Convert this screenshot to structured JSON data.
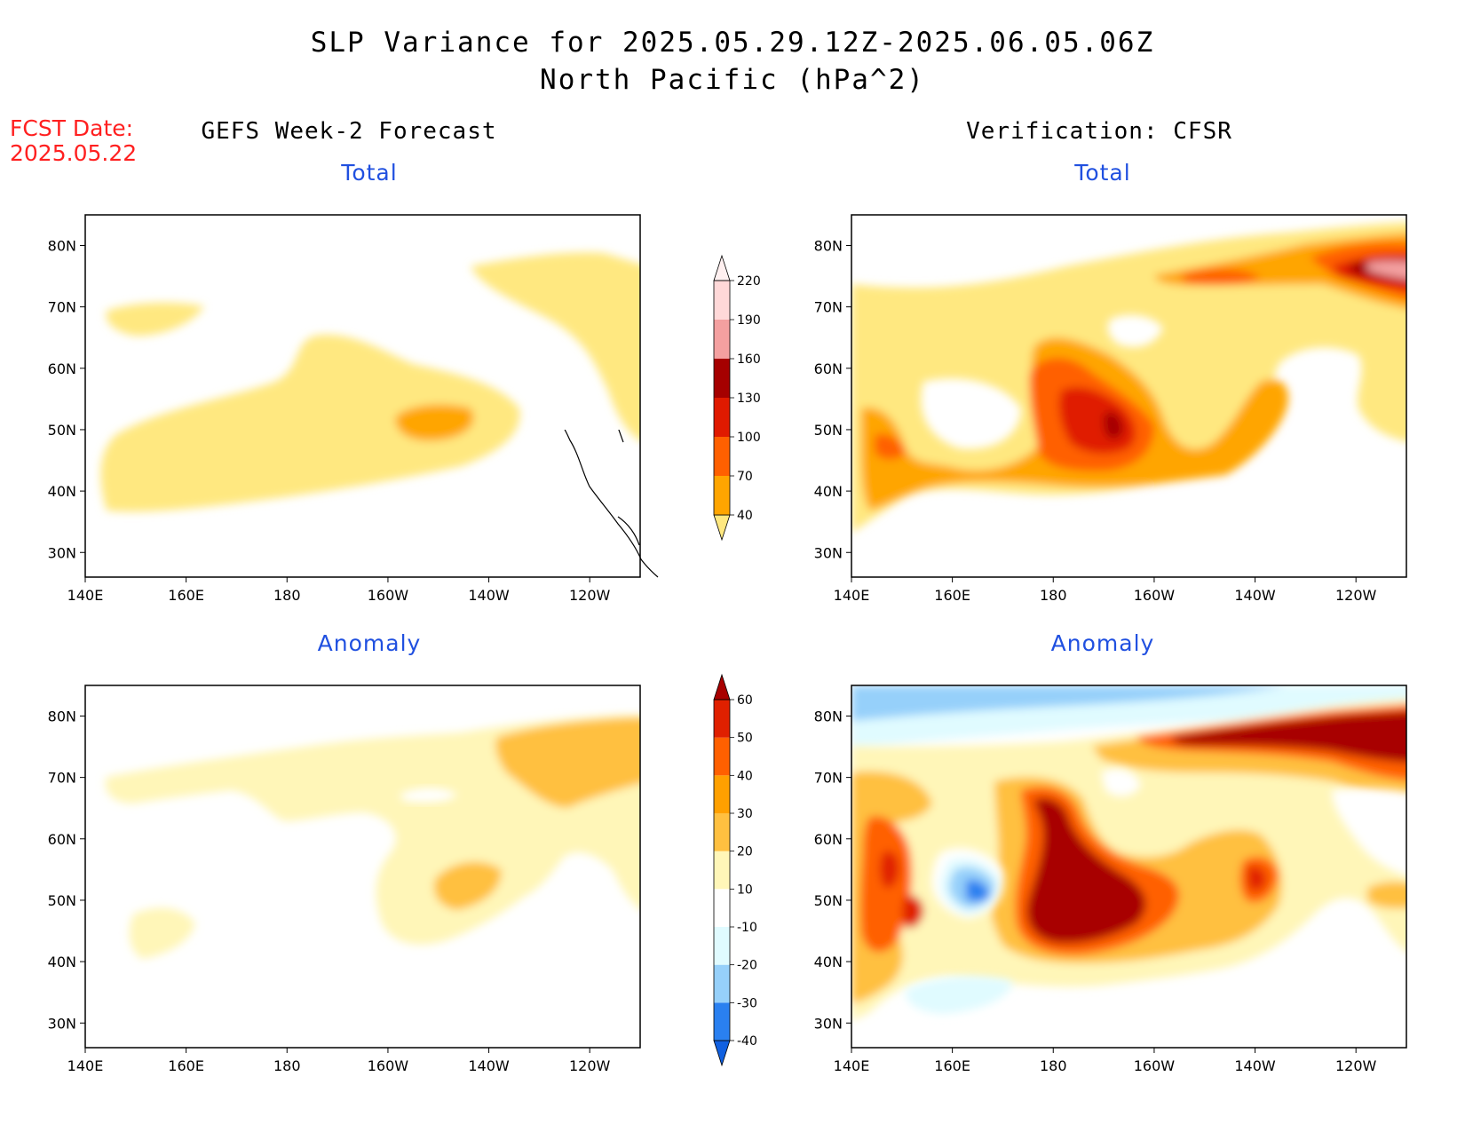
{
  "header": {
    "title_line1": "SLP Variance for 2025.05.29.12Z-2025.06.05.06Z",
    "title_line2": "North Pacific (hPa^2)",
    "fcst_label": "FCST Date:",
    "fcst_date": "2025.05.22"
  },
  "columns": {
    "left_title": "GEFS Week-2 Forecast",
    "right_title": "Verification: CFSR"
  },
  "panels": {
    "top_left_label": "Total",
    "top_right_label": "Total",
    "bottom_left_label": "Anomaly",
    "bottom_right_label": "Anomaly"
  },
  "axes": {
    "x_ticks": [
      "140E",
      "160E",
      "180",
      "160W",
      "140W",
      "120W"
    ],
    "y_ticks": [
      "80N",
      "70N",
      "60N",
      "50N",
      "40N",
      "30N"
    ]
  },
  "colorbars": {
    "total": {
      "levels": [
        "40",
        "70",
        "100",
        "130",
        "160",
        "190",
        "220"
      ],
      "colors": [
        "#ffe880",
        "#ffa500",
        "#ff6000",
        "#e01a00",
        "#a50000",
        "#f4a0a0",
        "#ffd8d8",
        "#fff0f0"
      ]
    },
    "anomaly": {
      "levels": [
        "-40",
        "-30",
        "-20",
        "-10",
        "10",
        "20",
        "30",
        "40",
        "50",
        "60"
      ],
      "colors": [
        "#1060e0",
        "#2a80f0",
        "#96d0fa",
        "#e0fbff",
        "#ffffff",
        "#fff6b8",
        "#ffc040",
        "#ffa000",
        "#ff6000",
        "#e02000",
        "#a80000"
      ]
    }
  }
}
